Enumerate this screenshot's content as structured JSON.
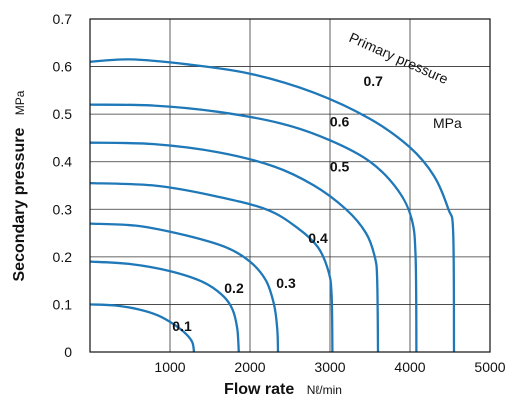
{
  "chart_data": {
    "type": "line",
    "xlabel": "Flow rate",
    "xunit": "Nℓ/min",
    "ylabel": "Secondary pressure",
    "yunit": "MPa",
    "xlim": [
      0,
      5000
    ],
    "ylim": [
      0,
      0.7
    ],
    "x_ticks": [
      "1000",
      "2000",
      "3000",
      "4000",
      "5000"
    ],
    "y_ticks": [
      "0",
      "0.1",
      "0.2",
      "0.3",
      "0.4",
      "0.5",
      "0.6",
      "0.7"
    ],
    "grid": true,
    "annotations": {
      "parameter_label": "Primary pressure",
      "parameter_unit": "MPa"
    },
    "series": [
      {
        "name": "0.1",
        "label_at": [
          1150,
          0.055
        ],
        "points": [
          [
            0,
            0.1
          ],
          [
            300,
            0.098
          ],
          [
            600,
            0.09
          ],
          [
            850,
            0.077
          ],
          [
            1050,
            0.058
          ],
          [
            1200,
            0.038
          ],
          [
            1280,
            0.02
          ],
          [
            1300,
            0.0
          ]
        ]
      },
      {
        "name": "0.2",
        "label_at": [
          1800,
          0.135
        ],
        "points": [
          [
            0,
            0.19
          ],
          [
            500,
            0.185
          ],
          [
            1000,
            0.17
          ],
          [
            1400,
            0.148
          ],
          [
            1650,
            0.12
          ],
          [
            1780,
            0.09
          ],
          [
            1840,
            0.05
          ],
          [
            1860,
            0.0
          ]
        ]
      },
      {
        "name": "0.3",
        "label_at": [
          2450,
          0.145
        ],
        "points": [
          [
            0,
            0.27
          ],
          [
            600,
            0.265
          ],
          [
            1200,
            0.245
          ],
          [
            1700,
            0.22
          ],
          [
            2000,
            0.19
          ],
          [
            2200,
            0.15
          ],
          [
            2300,
            0.1
          ],
          [
            2340,
            0.05
          ],
          [
            2350,
            0.0
          ]
        ]
      },
      {
        "name": "0.4",
        "label_at": [
          2850,
          0.24
        ],
        "points": [
          [
            0,
            0.355
          ],
          [
            800,
            0.35
          ],
          [
            1500,
            0.33
          ],
          [
            2200,
            0.3
          ],
          [
            2600,
            0.26
          ],
          [
            2850,
            0.22
          ],
          [
            2980,
            0.17
          ],
          [
            3020,
            0.12
          ],
          [
            3030,
            0.0
          ]
        ]
      },
      {
        "name": "0.5",
        "label_at": [
          3120,
          0.39
        ],
        "points": [
          [
            0,
            0.44
          ],
          [
            800,
            0.437
          ],
          [
            1600,
            0.42
          ],
          [
            2300,
            0.39
          ],
          [
            2800,
            0.35
          ],
          [
            3200,
            0.3
          ],
          [
            3450,
            0.25
          ],
          [
            3560,
            0.2
          ],
          [
            3590,
            0.15
          ],
          [
            3600,
            0.0
          ]
        ]
      },
      {
        "name": "0.6",
        "label_at": [
          3120,
          0.485
        ],
        "points": [
          [
            0,
            0.52
          ],
          [
            800,
            0.518
          ],
          [
            1600,
            0.505
          ],
          [
            2400,
            0.48
          ],
          [
            3000,
            0.445
          ],
          [
            3500,
            0.4
          ],
          [
            3850,
            0.34
          ],
          [
            4020,
            0.28
          ],
          [
            4070,
            0.2
          ],
          [
            4080,
            0.0
          ]
        ]
      },
      {
        "name": "0.7",
        "label_at": [
          3540,
          0.57
        ],
        "points": [
          [
            0,
            0.61
          ],
          [
            500,
            0.615
          ],
          [
            1200,
            0.605
          ],
          [
            2000,
            0.585
          ],
          [
            2800,
            0.545
          ],
          [
            3500,
            0.49
          ],
          [
            4000,
            0.43
          ],
          [
            4300,
            0.37
          ],
          [
            4480,
            0.3
          ],
          [
            4540,
            0.25
          ],
          [
            4550,
            0.0
          ]
        ]
      }
    ]
  }
}
